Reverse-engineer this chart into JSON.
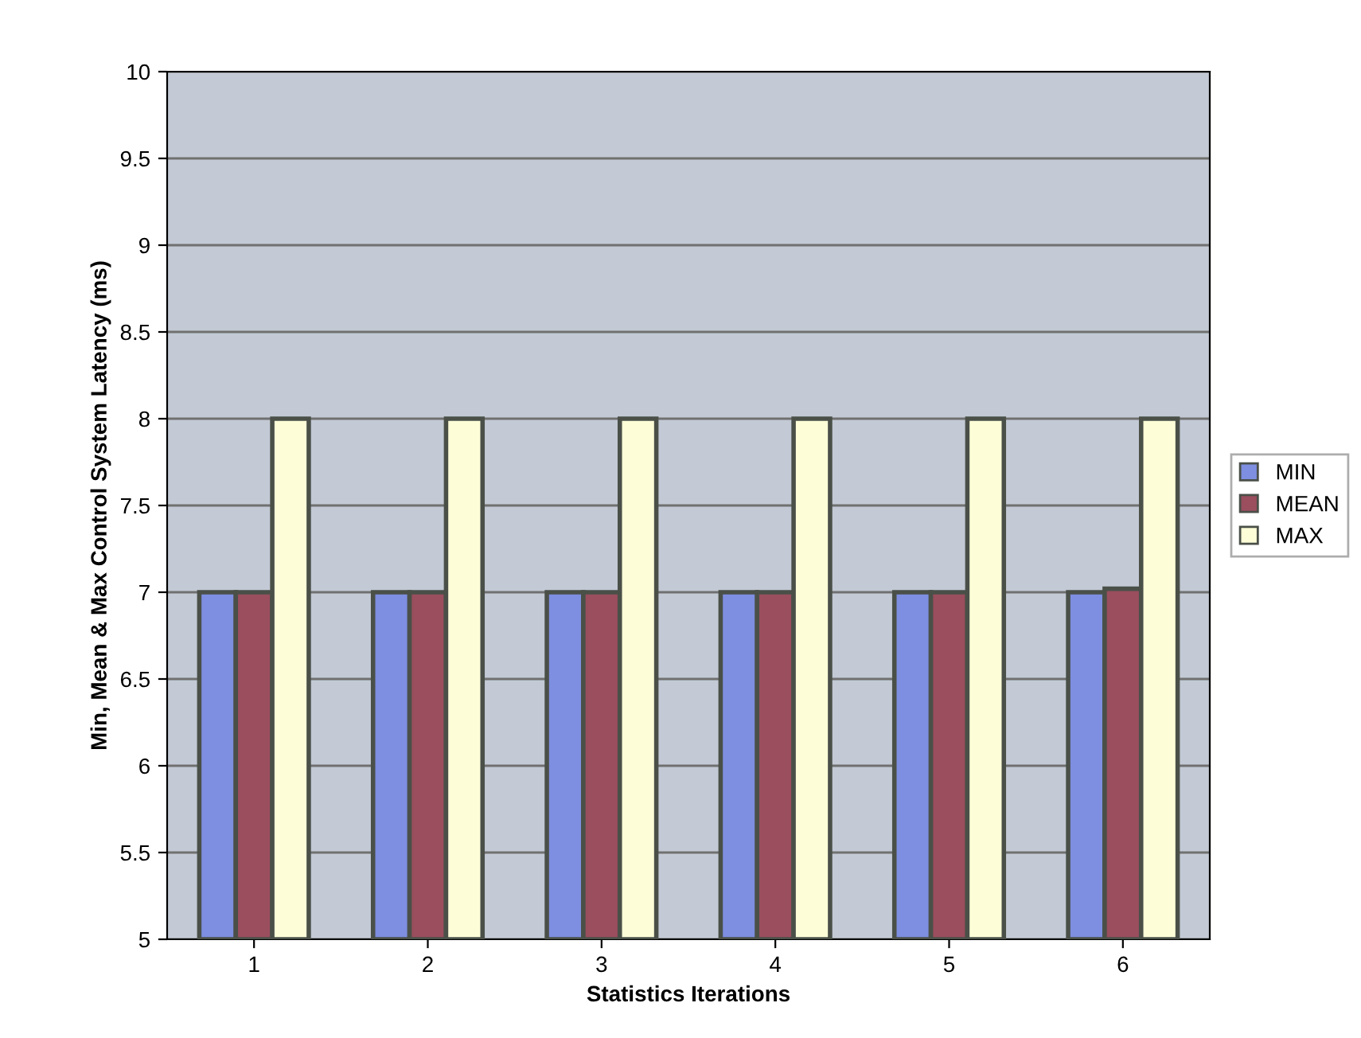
{
  "chart_data": {
    "type": "bar",
    "xlabel": "Statistics Iterations",
    "ylabel": "Min, Mean & Max Control System Latency (ms)",
    "categories": [
      "1",
      "2",
      "3",
      "4",
      "5",
      "6"
    ],
    "series": [
      {
        "name": "MIN",
        "color": "#7e8ee0",
        "values": [
          7,
          7,
          7,
          7,
          7,
          7
        ]
      },
      {
        "name": "MEAN",
        "color": "#9a4e5e",
        "values": [
          7,
          7,
          7,
          7,
          7,
          7.02
        ]
      },
      {
        "name": "MAX",
        "color": "#fdfdd8",
        "values": [
          8,
          8,
          8,
          8,
          8,
          8
        ]
      }
    ],
    "ylim": [
      5,
      10
    ],
    "yticks": [
      5,
      5.5,
      6,
      6.5,
      7,
      7.5,
      8,
      8.5,
      9,
      9.5,
      10
    ],
    "grid": "y",
    "legend": "right"
  }
}
